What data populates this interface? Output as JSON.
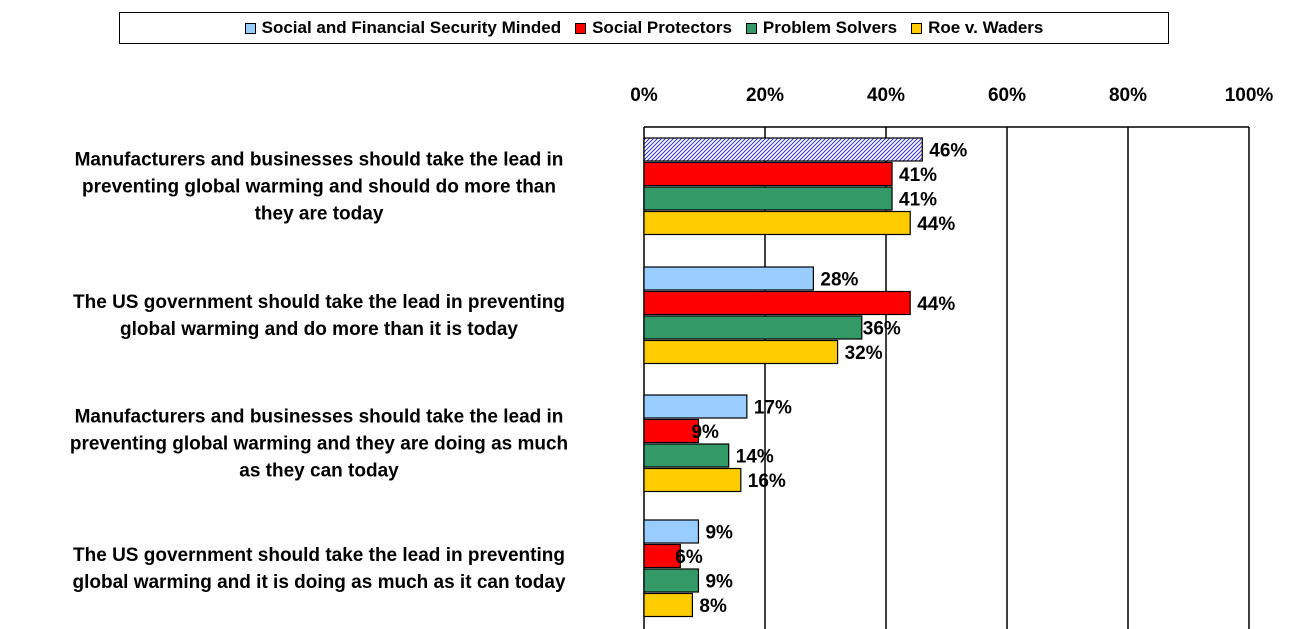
{
  "chart_data": {
    "type": "bar",
    "orientation": "horizontal",
    "categories": [
      "Manufacturers and businesses should take the lead in preventing global warming and should do more than they are today",
      "The US government should take the lead in preventing global warming and do more than it is today",
      "Manufacturers and businesses should take the lead in preventing global warming and they are doing as much as they can today",
      "The US government should take the lead in preventing global warming and it is doing as much as it can today"
    ],
    "category_lines": [
      [
        "Manufacturers and businesses should take the lead in",
        "preventing global warming and should do more than",
        "they are today"
      ],
      [
        "The US government should take the lead in preventing",
        "global warming and do more than it is today"
      ],
      [
        "Manufacturers and businesses should take the lead in",
        "preventing global warming and they are doing as much",
        "as they can today"
      ],
      [
        "The US government should take the lead in preventing",
        "global warming and it is doing as much as it can today"
      ]
    ],
    "series": [
      {
        "name": "Social and Financial Security Minded",
        "color": "#99CCFF",
        "values": [
          46,
          28,
          17,
          9
        ],
        "labels": [
          "46%",
          "28%",
          "17%",
          "9%"
        ]
      },
      {
        "name": "Social Protectors",
        "color": "#FF0000",
        "values": [
          41,
          44,
          9,
          6
        ],
        "labels": [
          "41%",
          "44%",
          "9%",
          "6%"
        ]
      },
      {
        "name": "Problem Solvers",
        "color": "#339966",
        "values": [
          41,
          36,
          14,
          9
        ],
        "labels": [
          "41%",
          "36%",
          "14%",
          "9%"
        ]
      },
      {
        "name": "Roe v. Waders",
        "color": "#FFCC00",
        "values": [
          44,
          32,
          16,
          8
        ],
        "labels": [
          "44%",
          "32%",
          "16%",
          "8%"
        ]
      }
    ],
    "highlight": {
      "series_index": 0,
      "category_index": 0,
      "pattern": "hatched"
    },
    "xlim": [
      0,
      100
    ],
    "x_ticks": [
      0,
      20,
      40,
      60,
      80,
      100
    ],
    "x_tick_labels": [
      "0%",
      "20%",
      "40%",
      "60%",
      "80%",
      "100%"
    ],
    "grid": true,
    "legend_position": "top"
  }
}
